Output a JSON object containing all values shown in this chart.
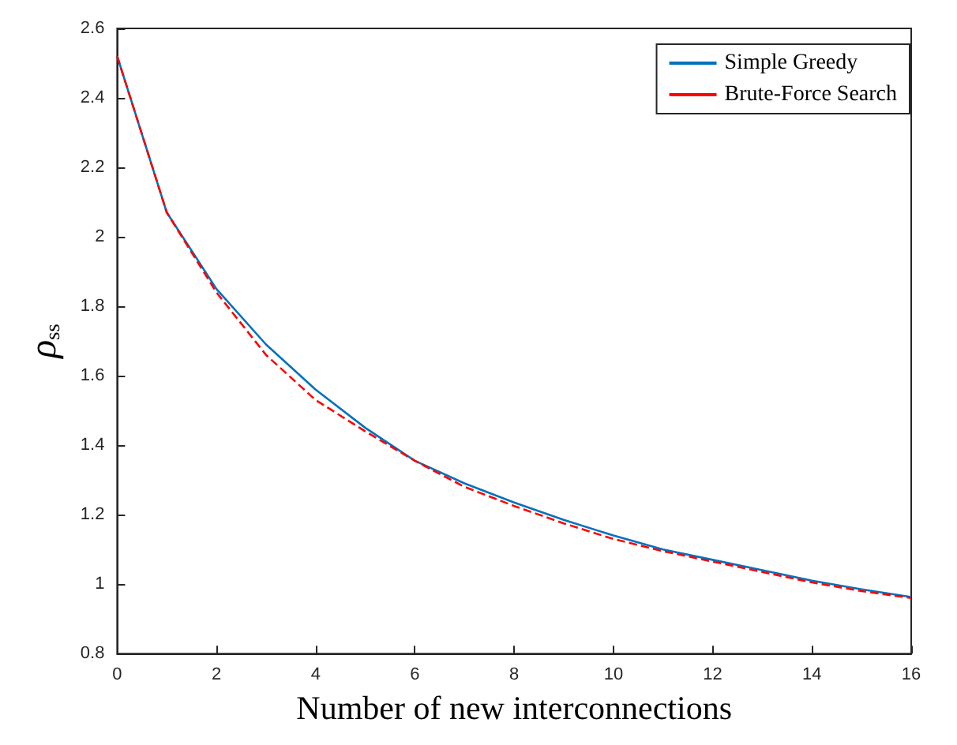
{
  "chart_data": {
    "type": "line",
    "xlabel": "Number of new interconnections",
    "ylabel": "ρ$_{ss}$",
    "x": [
      0,
      1,
      2,
      3,
      4,
      5,
      6,
      7,
      8,
      9,
      10,
      11,
      12,
      13,
      14,
      15,
      16
    ],
    "series": [
      {
        "name": "Simple Greedy",
        "color": "#0072bd",
        "line_style": "solid",
        "values": [
          2.52,
          2.07,
          1.85,
          1.69,
          1.56,
          1.45,
          1.355,
          1.29,
          1.235,
          1.185,
          1.14,
          1.1,
          1.07,
          1.04,
          1.01,
          0.985,
          0.963
        ]
      },
      {
        "name": "Brute-Force Search",
        "color": "#ff0000",
        "line_style": "dashed",
        "values": [
          2.52,
          2.07,
          1.84,
          1.66,
          1.53,
          1.44,
          1.355,
          1.28,
          1.225,
          1.175,
          1.13,
          1.095,
          1.065,
          1.035,
          1.005,
          0.98,
          0.96
        ]
      }
    ],
    "xlim": [
      0,
      16
    ],
    "xticks": [
      0,
      2,
      4,
      6,
      8,
      10,
      12,
      14,
      16
    ],
    "ylim": [
      0.8,
      2.6
    ],
    "yticks": [
      0.8,
      1,
      1.2,
      1.4,
      1.6,
      1.8,
      2,
      2.2,
      2.4,
      2.6
    ],
    "grid": false,
    "legend": "top right",
    "marker": "none"
  }
}
